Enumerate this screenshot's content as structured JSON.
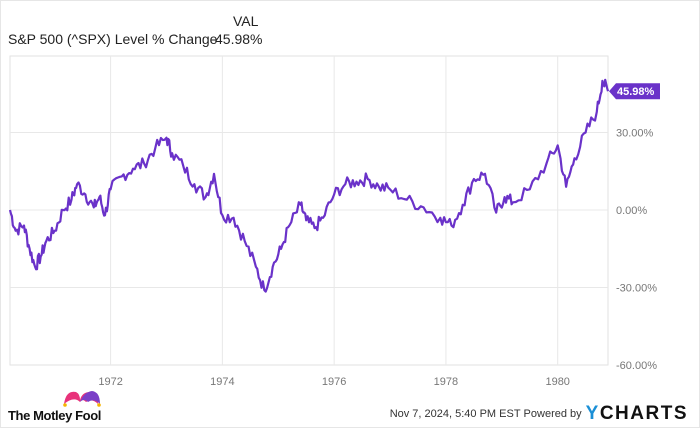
{
  "header": {
    "column_header": "VAL",
    "series_label": "S&P 500 (^SPX) Level % Change",
    "series_value": "45.98%"
  },
  "colors": {
    "line": "#6a32c9",
    "grid": "#e8e8e8",
    "axis_text": "#777777",
    "end_label_bg": "#6a32c9",
    "ycharts_y": "#1a8fd6"
  },
  "end_label": "45.98%",
  "footer": {
    "brand": "The Motley Fool",
    "timestamp": "Nov 7, 2024, 5:40 PM EST",
    "powered_by": "Powered by",
    "ycharts_logo_y": "Y",
    "ycharts_logo_rest": "CHARTS"
  },
  "chart_data": {
    "type": "line",
    "title": "S&P 500 (^SPX) Level % Change",
    "xlabel": "",
    "ylabel": "",
    "x_ticks": [
      "1972",
      "1974",
      "1976",
      "1978",
      "1980"
    ],
    "y_ticks": [
      "30.00%",
      "0.00%",
      "-30.00%",
      "-60.00%"
    ],
    "ylim": [
      -60,
      60
    ],
    "xlim": [
      1970.2,
      1980.9
    ],
    "grid": true,
    "legend_position": "top-left",
    "series": [
      {
        "name": "S&P 500 (^SPX) Level % Change",
        "end_value": 45.98,
        "x": [
          1970.2,
          1970.3,
          1970.45,
          1970.55,
          1970.65,
          1970.75,
          1970.85,
          1971.0,
          1971.15,
          1971.3,
          1971.4,
          1971.55,
          1971.7,
          1971.8,
          1971.9,
          1972.0,
          1972.2,
          1972.4,
          1972.6,
          1972.8,
          1973.0,
          1973.1,
          1973.3,
          1973.5,
          1973.7,
          1973.85,
          1974.0,
          1974.2,
          1974.4,
          1974.6,
          1974.75,
          1974.9,
          1975.05,
          1975.2,
          1975.4,
          1975.5,
          1975.65,
          1975.8,
          1976.0,
          1976.2,
          1976.4,
          1976.6,
          1976.8,
          1977.0,
          1977.3,
          1977.6,
          1977.9,
          1978.1,
          1978.3,
          1978.5,
          1978.7,
          1978.9,
          1979.05,
          1979.2,
          1979.5,
          1979.8,
          1980.0,
          1980.15,
          1980.3,
          1980.5,
          1980.7,
          1980.8,
          1980.9
        ],
        "values": [
          0,
          -8,
          -6,
          -15,
          -22,
          -18,
          -12,
          -8,
          0,
          4,
          10,
          6,
          1,
          5,
          -2,
          8,
          13,
          16,
          18,
          24,
          28,
          22,
          17,
          10,
          5,
          14,
          -2,
          -3,
          -12,
          -22,
          -31,
          -22,
          -15,
          -6,
          2,
          -4,
          -7,
          -3,
          6,
          10,
          11,
          12,
          9,
          8,
          4,
          1,
          -3,
          -6,
          2,
          12,
          14,
          -1,
          5,
          3,
          8,
          18,
          25,
          9,
          20,
          30,
          38,
          50,
          46
        ]
      }
    ]
  }
}
